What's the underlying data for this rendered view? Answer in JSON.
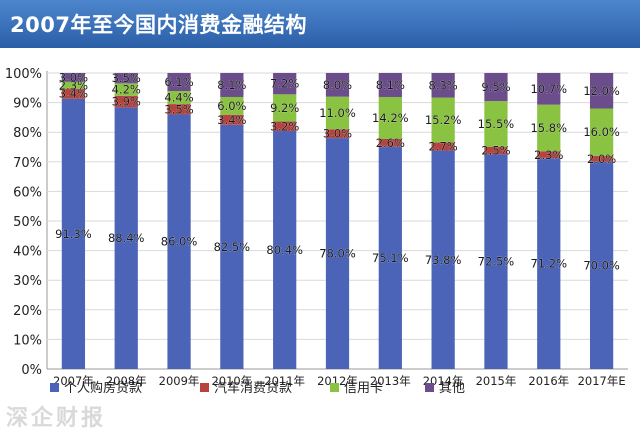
{
  "chart_data": {
    "type": "bar",
    "stacked": true,
    "percent": true,
    "title": "2007年至今国内消费金融结构",
    "categories": [
      "2007年",
      "2008年",
      "2009年",
      "2010年",
      "2011年",
      "2012年",
      "2013年",
      "2014年",
      "2015年",
      "2016年",
      "2017年E"
    ],
    "series": [
      {
        "name": "个人购房贷款",
        "color": "#4b64b8",
        "values": [
          91.3,
          88.4,
          86.0,
          82.5,
          80.4,
          78.0,
          75.1,
          73.8,
          72.5,
          71.2,
          70.0
        ],
        "labels": [
          "91.3%",
          "88.4%",
          "86.0%",
          "82.5%",
          "80.4%",
          "78.0%",
          "75.1%",
          "73.8%",
          "72.5%",
          "71.2%",
          "70.0%"
        ]
      },
      {
        "name": "汽车消费贷款",
        "color": "#b8423e",
        "values": [
          3.4,
          3.9,
          3.5,
          3.4,
          3.2,
          3.0,
          2.6,
          2.7,
          2.5,
          2.3,
          2.0
        ],
        "labels": [
          "3.4%",
          "3.9%",
          "3.5%",
          "3.4%",
          "3.2%",
          "3.0%",
          "2.6%",
          "2.7%",
          "2.5%",
          "2.3%",
          "2.0%"
        ]
      },
      {
        "name": "信用卡",
        "color": "#8ac242",
        "values": [
          2.3,
          4.2,
          4.4,
          6.0,
          9.2,
          11.0,
          14.2,
          15.2,
          15.5,
          15.8,
          16.0
        ],
        "labels": [
          "2.3%",
          "4.2%",
          "4.4%",
          "6.0%",
          "9.2%",
          "11.0%",
          "14.2%",
          "15.2%",
          "15.5%",
          "15.8%",
          "16.0%"
        ]
      },
      {
        "name": "其他",
        "color": "#6b4d8c",
        "values": [
          3.0,
          3.5,
          6.1,
          8.1,
          7.2,
          8.0,
          8.1,
          8.3,
          9.5,
          10.7,
          12.0
        ],
        "labels": [
          "3.0%",
          "3.5%",
          "6.1%",
          "8.1%",
          "7.2%",
          "8.0%",
          "8.1%",
          "8.3%",
          "9.5%",
          "10.7%",
          "12.0%"
        ]
      }
    ],
    "ylim": [
      0,
      100
    ],
    "yticks": [
      "0%",
      "10%",
      "20%",
      "30%",
      "40%",
      "50%",
      "60%",
      "70%",
      "80%",
      "90%",
      "100%"
    ],
    "grid": true,
    "legend": "bottom"
  },
  "watermark": "深企财报"
}
